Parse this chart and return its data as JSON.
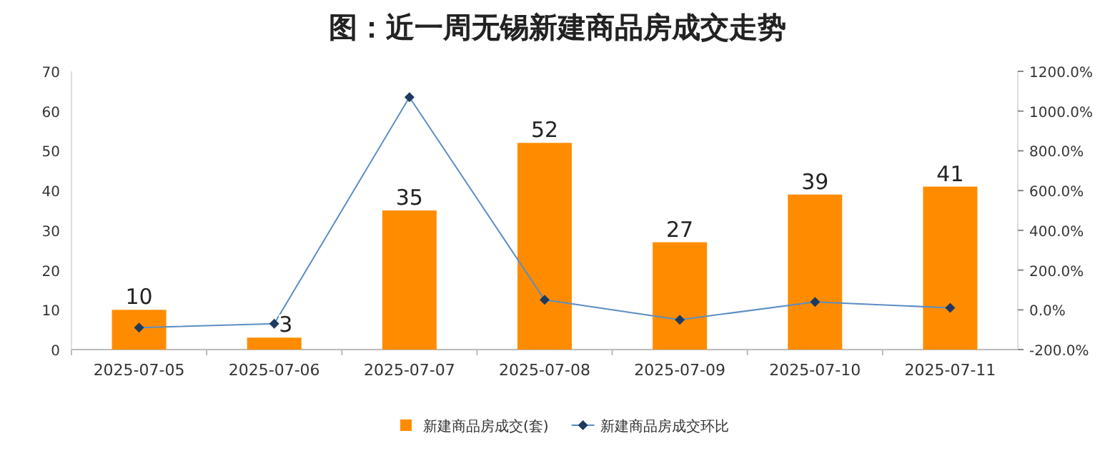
{
  "chart_data": {
    "type": "bar",
    "title": "图：近一周无锡新建商品房成交走势",
    "categories": [
      "2025-07-05",
      "2025-07-06",
      "2025-07-07",
      "2025-07-08",
      "2025-07-09",
      "2025-07-10",
      "2025-07-11"
    ],
    "series": [
      {
        "name": "新建商品房成交(套)",
        "color": "#ff8c00",
        "values": [
          10,
          3,
          35,
          52,
          27,
          39,
          41
        ],
        "value_labels": [
          "10",
          "3",
          "35",
          "52",
          "27",
          "39",
          "41"
        ]
      },
      {
        "name": "新建商品房成交环比",
        "type": "line",
        "axis": "y2",
        "color": "#5b8ec4",
        "marker": "diamond",
        "values": [
          -90,
          -70,
          1070,
          50,
          -50,
          40,
          10
        ]
      }
    ],
    "ylim": [
      0,
      70
    ],
    "yticks": [
      0,
      10,
      20,
      30,
      40,
      50,
      60,
      70
    ],
    "y2lim": [
      -200,
      1200
    ],
    "y2ticks": [
      {
        "value": -200,
        "label": "-200.0%"
      },
      {
        "value": 0,
        "label": "0.0%"
      },
      {
        "value": 200,
        "label": "200.0%"
      },
      {
        "value": 400,
        "label": "400.0%"
      },
      {
        "value": 600,
        "label": "600.0%"
      },
      {
        "value": 800,
        "label": "800.0%"
      },
      {
        "value": 1000,
        "label": "1000.0%"
      },
      {
        "value": 1200,
        "label": "1200.0%"
      }
    ],
    "legend": "bottom",
    "grid": false
  }
}
